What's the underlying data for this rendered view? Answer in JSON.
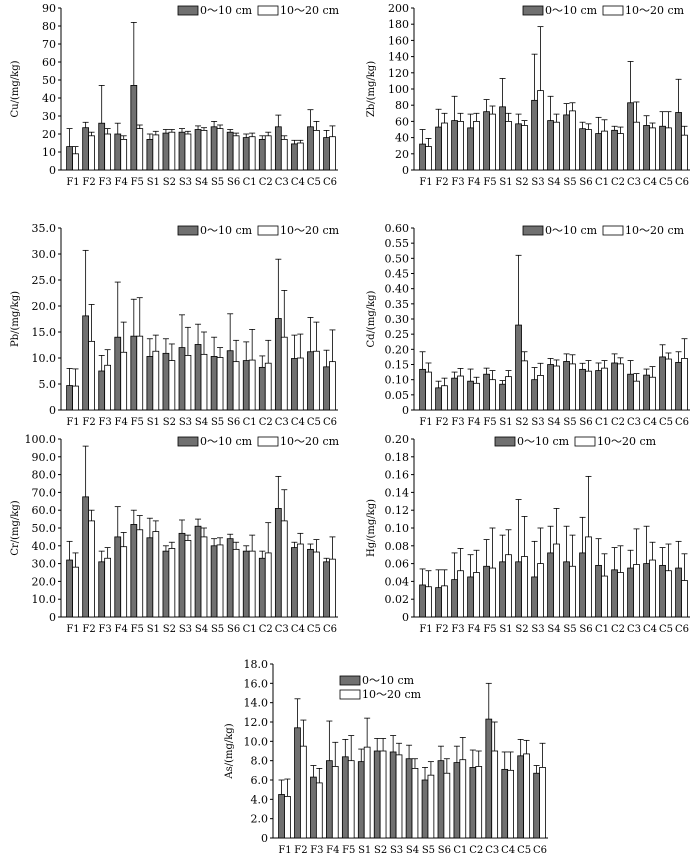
{
  "legend": {
    "series_a": "0～10 cm",
    "series_b": "10～20 cm"
  },
  "categories": [
    "F1",
    "F2",
    "F3",
    "F4",
    "F5",
    "S1",
    "S2",
    "S3",
    "S4",
    "S5",
    "S6",
    "C1",
    "C2",
    "C3",
    "C4",
    "C5",
    "C6"
  ],
  "colors": {
    "series_a": "#707070",
    "series_b": "#ffffff",
    "stroke": "#000000"
  },
  "chart_data": [
    {
      "type": "bar",
      "ylabel": "Cu/(mg/kg)",
      "ylim": [
        0,
        90
      ],
      "yticks": [
        "0",
        "10",
        "20",
        "30",
        "40",
        "50",
        "60",
        "70",
        "80",
        "90"
      ],
      "legend_position": "top-right",
      "series": [
        {
          "name": "0～10 cm",
          "values": [
            13,
            23.5,
            26,
            20,
            47,
            17,
            20.5,
            21,
            22.5,
            24,
            21,
            18,
            17,
            24,
            14.5,
            24,
            18
          ],
          "errors": [
            10,
            3,
            21,
            6,
            35,
            3,
            2,
            2,
            2,
            3,
            1.5,
            2,
            2,
            6.5,
            2,
            9.5,
            4
          ]
        },
        {
          "name": "10～20 cm",
          "values": [
            9,
            19,
            20,
            17,
            23,
            19.5,
            21,
            20,
            22,
            23,
            19,
            18.5,
            19,
            17,
            15,
            22,
            18.5
          ],
          "errors": [
            4,
            2,
            3,
            2,
            2,
            2,
            1.5,
            1.5,
            1.5,
            2,
            1.5,
            2,
            2,
            2,
            1.5,
            5,
            6
          ]
        }
      ]
    },
    {
      "type": "bar",
      "ylabel": "Zb/(mg/kg)",
      "ylim": [
        0,
        200
      ],
      "yticks": [
        "0",
        "20",
        "40",
        "60",
        "80",
        "100",
        "120",
        "140",
        "160",
        "180",
        "200"
      ],
      "legend_position": "top-right",
      "series": [
        {
          "name": "0～10 cm",
          "values": [
            32,
            53,
            61,
            52,
            72,
            78,
            57,
            86,
            61,
            68,
            51,
            45,
            49,
            83,
            55,
            54,
            71
          ],
          "errors": [
            18,
            22,
            30,
            17,
            15,
            35,
            12,
            57,
            30,
            14,
            8,
            20,
            5,
            51,
            12,
            18,
            41
          ]
        },
        {
          "name": "10～20 cm",
          "values": [
            29,
            58,
            60,
            60,
            69,
            60,
            55,
            98,
            59,
            73,
            50,
            48,
            45,
            59,
            52,
            52,
            43
          ],
          "errors": [
            10,
            12,
            10,
            10,
            10,
            10,
            6,
            79,
            10,
            10,
            7,
            14,
            8,
            25,
            6,
            20,
            11
          ]
        }
      ]
    },
    {
      "type": "bar",
      "ylabel": "Pb/(mg/kg)",
      "ylim": [
        0,
        35
      ],
      "yticks": [
        "0",
        "5.0",
        "10.0",
        "15.0",
        "20.0",
        "25.0",
        "30.0",
        "35.0"
      ],
      "legend_position": "top-right",
      "series": [
        {
          "name": "0～10 cm",
          "values": [
            4.7,
            18.1,
            7.5,
            14.0,
            14.2,
            10.3,
            10.9,
            12.0,
            12.6,
            10.3,
            11.4,
            9.5,
            8.2,
            17.6,
            9.9,
            11.2,
            8.3
          ],
          "errors": [
            3.3,
            12.6,
            3.0,
            10.6,
            7.1,
            3.4,
            2.8,
            6.3,
            3.9,
            3.7,
            7.1,
            3.6,
            2.2,
            11.4,
            4.5,
            6.6,
            3.2
          ]
        },
        {
          "name": "10～20 cm",
          "values": [
            4.6,
            13.2,
            8.6,
            11.1,
            14.2,
            11.3,
            9.5,
            10.5,
            10.7,
            10.1,
            9.3,
            9.6,
            9.0,
            14.0,
            10.0,
            11.3,
            9.3
          ],
          "errors": [
            3.3,
            7.1,
            3.0,
            5.8,
            7.4,
            3.1,
            3.2,
            5.4,
            4.3,
            1.9,
            4.1,
            5.9,
            4.4,
            9.0,
            4.6,
            5.6,
            6.1
          ]
        }
      ]
    },
    {
      "type": "bar",
      "ylabel": "Cd/(mg/kg)",
      "ylim": [
        0,
        0.6
      ],
      "yticks": [
        "0",
        "0.05",
        "0.10",
        "0.15",
        "0.20",
        "0.25",
        "0.30",
        "0.35",
        "0.40",
        "0.45",
        "0.50",
        "0.55",
        "0.60"
      ],
      "legend_position": "top-right",
      "series": [
        {
          "name": "0～10 cm",
          "values": [
            0.134,
            0.073,
            0.105,
            0.095,
            0.118,
            0.085,
            0.28,
            0.1,
            0.15,
            0.16,
            0.134,
            0.13,
            0.155,
            0.118,
            0.115,
            0.175,
            0.157
          ],
          "errors": [
            0.058,
            0.022,
            0.02,
            0.04,
            0.02,
            0.012,
            0.23,
            0.04,
            0.02,
            0.025,
            0.02,
            0.025,
            0.03,
            0.045,
            0.02,
            0.04,
            0.035
          ]
        },
        {
          "name": "10～20 cm",
          "values": [
            0.125,
            0.08,
            0.112,
            0.088,
            0.1,
            0.11,
            0.162,
            0.114,
            0.145,
            0.152,
            0.128,
            0.138,
            0.152,
            0.095,
            0.108,
            0.168,
            0.17
          ],
          "errors": [
            0.03,
            0.025,
            0.025,
            0.02,
            0.03,
            0.02,
            0.03,
            0.04,
            0.02,
            0.03,
            0.035,
            0.025,
            0.02,
            0.025,
            0.035,
            0.02,
            0.065
          ]
        }
      ]
    },
    {
      "type": "bar",
      "ylabel": "Cr/(mg/kg)",
      "ylim": [
        0,
        100
      ],
      "yticks": [
        "0",
        "10.0",
        "20.0",
        "30.0",
        "40.0",
        "50.0",
        "60.0",
        "70.0",
        "80.0",
        "90.0",
        "100.0"
      ],
      "legend_position": "top-right",
      "series": [
        {
          "name": "0～10 cm",
          "values": [
            32.0,
            67.5,
            31.0,
            45.0,
            52.0,
            44.5,
            37.0,
            47.0,
            51.0,
            40.0,
            44.0,
            37.0,
            33.0,
            61.0,
            39.0,
            38.0,
            31.0
          ],
          "errors": [
            10.5,
            28.5,
            6.0,
            17.0,
            8.0,
            11.0,
            3.0,
            7.5,
            4.0,
            4.0,
            2.5,
            3.0,
            4.0,
            18.0,
            3.0,
            3.0,
            2.0
          ]
        },
        {
          "name": "10～20 cm",
          "values": [
            28.0,
            54.0,
            33.0,
            39.5,
            49.0,
            48.0,
            38.5,
            43.0,
            45.0,
            40.5,
            38.0,
            37.0,
            36.0,
            54.0,
            41.0,
            36.5,
            32.5
          ],
          "errors": [
            8.0,
            6.0,
            6.0,
            8.0,
            8.0,
            6.0,
            3.5,
            3.0,
            5.0,
            4.0,
            4.0,
            9.0,
            17.0,
            17.5,
            6.0,
            7.0,
            12.5
          ]
        }
      ]
    },
    {
      "type": "bar",
      "ylabel": "Hg/(mg/kg)",
      "ylim": [
        0,
        0.2
      ],
      "yticks": [
        "0",
        "0.02",
        "0.04",
        "0.06",
        "0.08",
        "0.10",
        "0.12",
        "0.14",
        "0.16",
        "0.18",
        "0.20"
      ],
      "legend_position": "top-right",
      "series": [
        {
          "name": "0～10 cm",
          "values": [
            0.036,
            0.033,
            0.042,
            0.045,
            0.057,
            0.062,
            0.062,
            0.045,
            0.072,
            0.062,
            0.072,
            0.058,
            0.053,
            0.055,
            0.06,
            0.058,
            0.055
          ],
          "errors": [
            0.018,
            0.02,
            0.03,
            0.025,
            0.03,
            0.03,
            0.07,
            0.04,
            0.03,
            0.04,
            0.04,
            0.03,
            0.025,
            0.02,
            0.042,
            0.02,
            0.03
          ]
        },
        {
          "name": "10～20 cm",
          "values": [
            0.034,
            0.035,
            0.052,
            0.05,
            0.055,
            0.07,
            0.068,
            0.06,
            0.082,
            0.057,
            0.09,
            0.046,
            0.05,
            0.059,
            0.064,
            0.052,
            0.041
          ],
          "errors": [
            0.018,
            0.018,
            0.025,
            0.025,
            0.045,
            0.028,
            0.045,
            0.04,
            0.04,
            0.035,
            0.068,
            0.025,
            0.03,
            0.04,
            0.02,
            0.03,
            0.03
          ]
        }
      ]
    },
    {
      "type": "bar",
      "ylabel": "As/(mg/kg)",
      "ylim": [
        0,
        18
      ],
      "yticks": [
        "0",
        "2.0",
        "4.0",
        "6.0",
        "8.0",
        "10.0",
        "12.0",
        "14.0",
        "16.0",
        "18.0"
      ],
      "legend_position": "top-right",
      "series": [
        {
          "name": "0～10 cm",
          "values": [
            4.5,
            11.4,
            6.3,
            8.0,
            8.4,
            7.9,
            9.0,
            8.9,
            8.2,
            6.0,
            8.0,
            7.8,
            7.3,
            12.3,
            7.1,
            8.5,
            6.7
          ],
          "errors": [
            1.5,
            3.0,
            1.2,
            4.1,
            1.8,
            1.3,
            1.3,
            1.7,
            1.4,
            1.3,
            1.5,
            1.7,
            1.8,
            3.7,
            1.8,
            1.7,
            0.8
          ]
        },
        {
          "name": "10～20 cm",
          "values": [
            4.3,
            9.5,
            5.7,
            7.4,
            8.0,
            9.4,
            9.0,
            8.6,
            7.2,
            6.5,
            6.7,
            8.1,
            7.4,
            9.0,
            7.0,
            8.7,
            7.3
          ],
          "errors": [
            1.8,
            2.7,
            1.5,
            2.5,
            2.6,
            3.0,
            1.3,
            1.2,
            1.0,
            1.4,
            1.5,
            2.3,
            1.6,
            3.0,
            1.9,
            1.4,
            2.5
          ]
        }
      ]
    }
  ]
}
